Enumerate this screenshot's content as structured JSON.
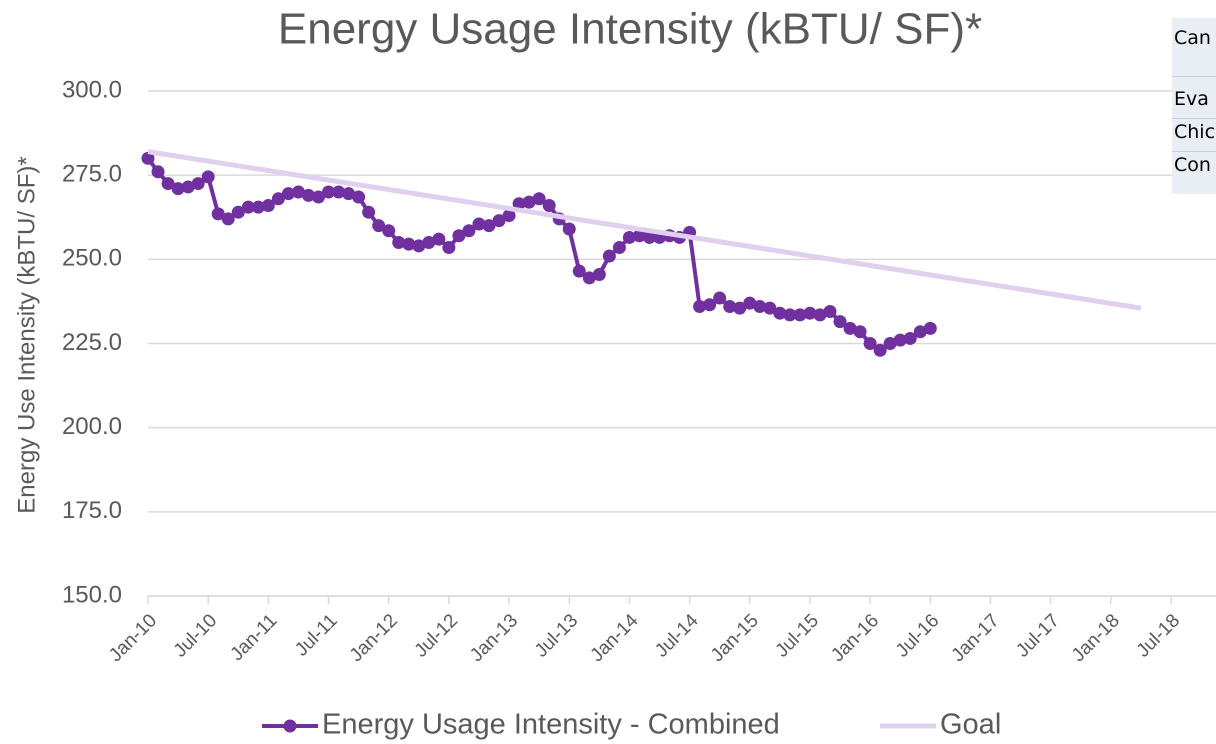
{
  "chart_data": {
    "type": "line",
    "title": "Energy Usage Intensity (kBTU/ SF)*",
    "y_label": "Energy Use Intensity (kBTU/ SF)*",
    "xlim": [
      "2010-01",
      "2018-07"
    ],
    "xticks": [
      {
        "value": "2010-01",
        "label": "Jan-10"
      },
      {
        "value": "2010-07",
        "label": "Jul-10"
      },
      {
        "value": "2011-01",
        "label": "Jan-11"
      },
      {
        "value": "2011-07",
        "label": "Jul-11"
      },
      {
        "value": "2012-01",
        "label": "Jan-12"
      },
      {
        "value": "2012-07",
        "label": "Jul-12"
      },
      {
        "value": "2013-01",
        "label": "Jan-13"
      },
      {
        "value": "2013-07",
        "label": "Jul-13"
      },
      {
        "value": "2014-01",
        "label": "Jan-14"
      },
      {
        "value": "2014-07",
        "label": "Jul-14"
      },
      {
        "value": "2015-01",
        "label": "Jan-15"
      },
      {
        "value": "2015-07",
        "label": "Jul-15"
      },
      {
        "value": "2016-01",
        "label": "Jan-16"
      },
      {
        "value": "2016-07",
        "label": "Jul-16"
      },
      {
        "value": "2017-01",
        "label": "Jan-17"
      },
      {
        "value": "2017-07",
        "label": "Jul-17"
      },
      {
        "value": "2018-01",
        "label": "Jan-18"
      },
      {
        "value": "2018-07",
        "label": "Jul-18"
      }
    ],
    "ylim": [
      150,
      300
    ],
    "yticks": [
      {
        "value": 150,
        "label": "150.0"
      },
      {
        "value": 175,
        "label": "175.0"
      },
      {
        "value": 200,
        "label": "200.0"
      },
      {
        "value": 225,
        "label": "225.0"
      },
      {
        "value": 250,
        "label": "250.0"
      },
      {
        "value": 275,
        "label": "275.0"
      },
      {
        "value": 300,
        "label": "300.0"
      }
    ],
    "grid": true,
    "legend": "bottom",
    "series": [
      {
        "name": "Energy Usage Intensity - Combined",
        "color": "#7030a0",
        "markers": true,
        "x": [
          "2010-01",
          "2010-02",
          "2010-03",
          "2010-04",
          "2010-05",
          "2010-06",
          "2010-07",
          "2010-08",
          "2010-09",
          "2010-10",
          "2010-11",
          "2010-12",
          "2011-01",
          "2011-02",
          "2011-03",
          "2011-04",
          "2011-05",
          "2011-06",
          "2011-07",
          "2011-08",
          "2011-09",
          "2011-10",
          "2011-11",
          "2011-12",
          "2012-01",
          "2012-02",
          "2012-03",
          "2012-04",
          "2012-05",
          "2012-06",
          "2012-07",
          "2012-08",
          "2012-09",
          "2012-10",
          "2012-11",
          "2012-12",
          "2013-01",
          "2013-02",
          "2013-03",
          "2013-04",
          "2013-05",
          "2013-06",
          "2013-07",
          "2013-08",
          "2013-09",
          "2013-10",
          "2013-11",
          "2013-12",
          "2014-01",
          "2014-02",
          "2014-03",
          "2014-04",
          "2014-05",
          "2014-06",
          "2014-07",
          "2014-08",
          "2014-09",
          "2014-10",
          "2014-11",
          "2014-12",
          "2015-01",
          "2015-02",
          "2015-03",
          "2015-04",
          "2015-05",
          "2015-06",
          "2015-07",
          "2015-08",
          "2015-09",
          "2015-10",
          "2015-11",
          "2015-12",
          "2016-01",
          "2016-02",
          "2016-03",
          "2016-04",
          "2016-05",
          "2016-06",
          "2016-07"
        ],
        "values": [
          280,
          276,
          272.5,
          271,
          271.5,
          272.5,
          274.5,
          263.5,
          262,
          264,
          265.5,
          265.5,
          266,
          268,
          269.5,
          270,
          269,
          268.5,
          270,
          270,
          269.5,
          268.5,
          264,
          260,
          258.5,
          255,
          254.5,
          254,
          255,
          256,
          253.5,
          257,
          258.5,
          260.5,
          260,
          261.5,
          263,
          266.5,
          267,
          268,
          266,
          262,
          259,
          246.5,
          244.5,
          245.5,
          251,
          253.5,
          256.5,
          257,
          256.5,
          256.5,
          257,
          256.5,
          258,
          236,
          236.5,
          238.5,
          236,
          235.5,
          237,
          236,
          235.5,
          234,
          233.5,
          233.5,
          234,
          233.5,
          234.5,
          231.5,
          229.5,
          228.5,
          225,
          223,
          225,
          226,
          226.5,
          228.5,
          229.5
        ]
      },
      {
        "name": "Goal",
        "color": "#e0d0ee",
        "markers": false,
        "x": [
          "2010-01",
          "2018-04"
        ],
        "values": [
          282,
          235.5
        ]
      }
    ]
  },
  "table": {
    "header": "Can",
    "rows": [
      "Eva",
      "Chic",
      "Con"
    ]
  }
}
